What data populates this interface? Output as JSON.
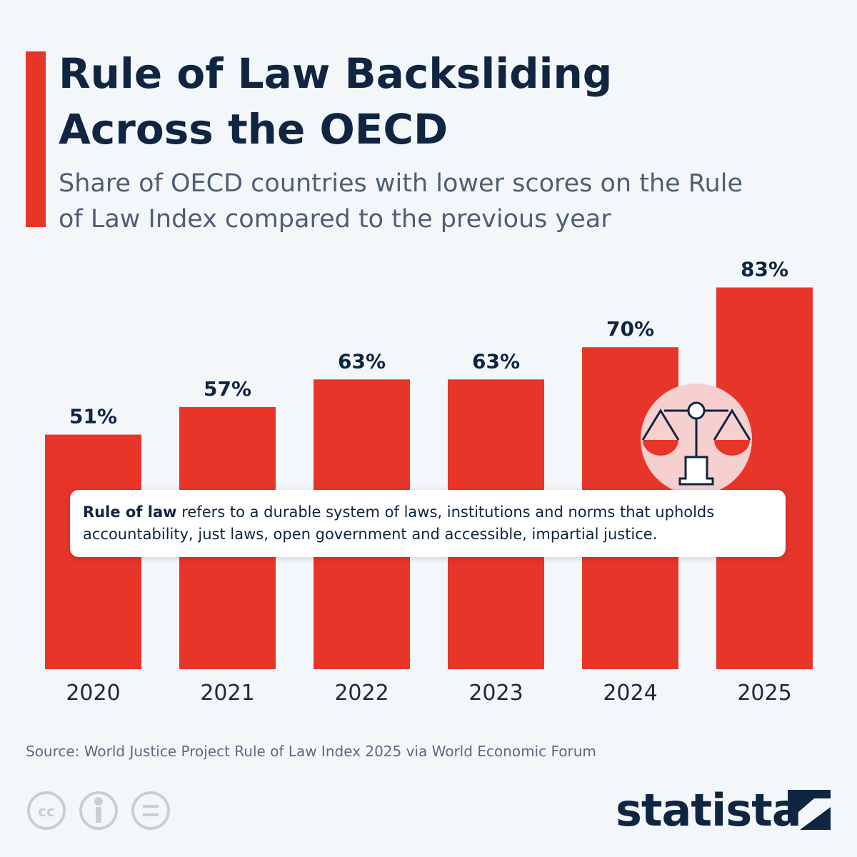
{
  "chart_data": {
    "type": "bar",
    "title": "Rule of Law Backsliding Across the OECD",
    "subtitle": "Share of OECD countries with lower scores on the Rule of Law Index compared to the previous year",
    "categories": [
      "2020",
      "2021",
      "2022",
      "2023",
      "2024",
      "2025"
    ],
    "values": [
      51,
      57,
      63,
      63,
      70,
      83
    ],
    "value_labels": [
      "51%",
      "57%",
      "63%",
      "63%",
      "70%",
      "83%"
    ],
    "color": "#e8352a",
    "annotation": {
      "bold": "Rule of law",
      "text": "refers to a durable system of laws, institutions and norms that upholds accountability, just laws, open government and accessible, impartial justice."
    },
    "source": "Source: World Justice Project Rule of Law Index 2025 via World Economic Forum",
    "brand": "statista"
  }
}
